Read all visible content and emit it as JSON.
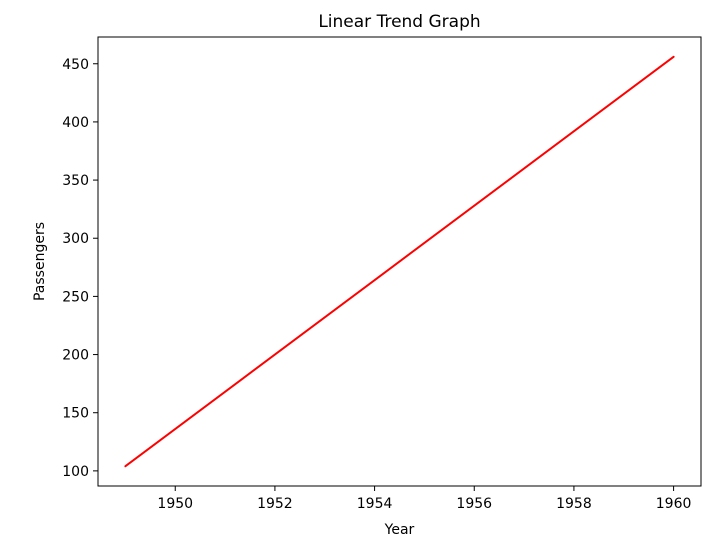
{
  "chart_data": {
    "type": "line",
    "title": "Linear Trend Graph",
    "xlabel": "Year",
    "ylabel": "Passengers",
    "xlim": [
      1948.45,
      1960.55
    ],
    "ylim": [
      87,
      473
    ],
    "xticks": [
      1950,
      1952,
      1954,
      1956,
      1958,
      1960
    ],
    "yticks": [
      100,
      150,
      200,
      250,
      300,
      350,
      400,
      450
    ],
    "grid": false,
    "legend": "none",
    "series": [
      {
        "color": "#ff0000",
        "x": [
          1949,
          1960
        ],
        "y": [
          104,
          456
        ]
      }
    ]
  }
}
